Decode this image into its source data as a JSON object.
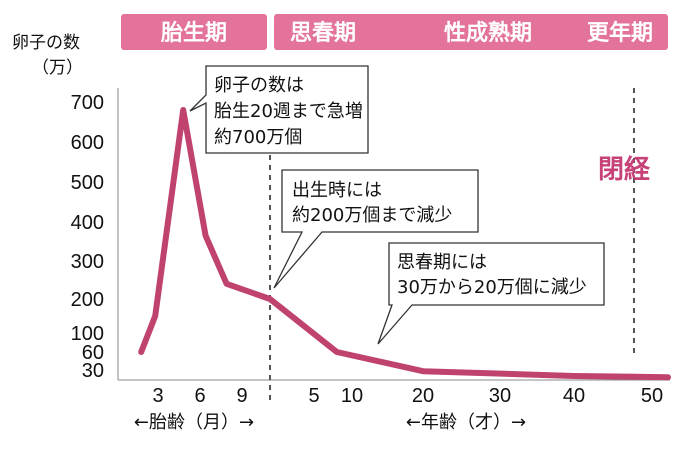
{
  "chart_data": {
    "type": "line",
    "title": "",
    "ylabel": "卵子の数",
    "yunit": "（万）",
    "line_color": "#c0436f",
    "phase_color": "#e3739b",
    "phases": {
      "fetal": "胎生期",
      "puberty": "思春期",
      "mature": "性成熟期",
      "menopause_period": "更年期"
    },
    "y_ticks": [
      30,
      60,
      100,
      200,
      300,
      400,
      500,
      600,
      700
    ],
    "x_ticks_fetal": [
      "3",
      "6",
      "9"
    ],
    "x_ticks_age": [
      "5",
      "10",
      "20",
      "30",
      "40",
      "50"
    ],
    "xlabel_fetal": "←胎齢（月）→",
    "xlabel_age": "←年齢（才）→",
    "series": [
      {
        "points": [
          {
            "period": "fetal",
            "x": 1.8,
            "y": 60
          },
          {
            "period": "fetal",
            "x": 2.8,
            "y": 150
          },
          {
            "period": "fetal",
            "x": 4.8,
            "y": 680
          },
          {
            "period": "fetal",
            "x": 6.4,
            "y": 365
          },
          {
            "period": "fetal",
            "x": 7.9,
            "y": 240
          },
          {
            "period": "birth",
            "x": 0,
            "y": 200
          },
          {
            "period": "age",
            "x": 8,
            "y": 60
          },
          {
            "period": "age",
            "x": 20,
            "y": 28
          },
          {
            "period": "age",
            "x": 40,
            "y": 20
          },
          {
            "period": "age",
            "x": 52,
            "y": 18
          }
        ]
      }
    ],
    "annotations": {
      "peak": [
        "卵子の数は",
        "胎生20週まで急増",
        "約700万個"
      ],
      "birth": [
        "出生時には",
        "約200万個まで減少"
      ],
      "puberty": [
        "思春期には",
        "30万から20万個に減少"
      ],
      "menopause": "閉経"
    }
  }
}
